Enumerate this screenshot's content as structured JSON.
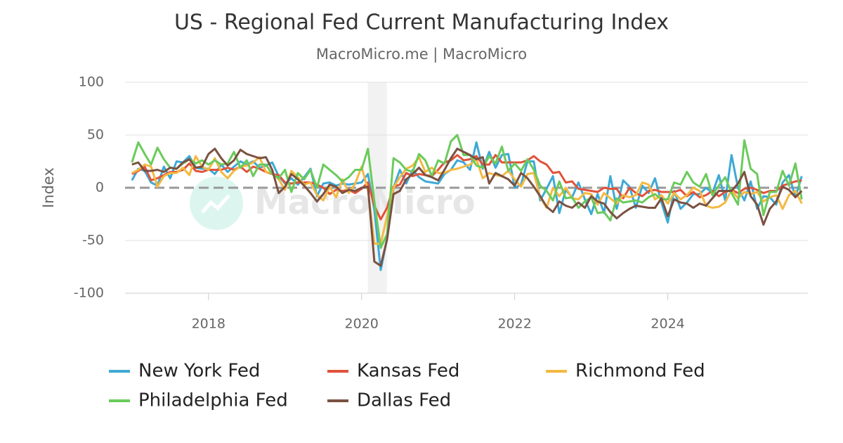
{
  "chart_data": {
    "type": "line",
    "title": "US - Regional Fed Current Manufacturing Index",
    "subtitle": "MacroMicro.me | MacroMicro",
    "y_label": "Index",
    "watermark": "MacroMicro",
    "x": [
      2017,
      2017.083,
      2017.167,
      2017.25,
      2017.333,
      2017.417,
      2017.5,
      2017.583,
      2017.667,
      2017.75,
      2017.833,
      2017.917,
      2018,
      2018.083,
      2018.167,
      2018.25,
      2018.333,
      2018.417,
      2018.5,
      2018.583,
      2018.667,
      2018.75,
      2018.833,
      2018.917,
      2019,
      2019.083,
      2019.167,
      2019.25,
      2019.333,
      2019.417,
      2019.5,
      2019.583,
      2019.667,
      2019.75,
      2019.833,
      2019.917,
      2020,
      2020.083,
      2020.167,
      2020.25,
      2020.333,
      2020.417,
      2020.5,
      2020.583,
      2020.667,
      2020.75,
      2020.833,
      2020.917,
      2021,
      2021.083,
      2021.167,
      2021.25,
      2021.333,
      2021.417,
      2021.5,
      2021.583,
      2021.667,
      2021.75,
      2021.833,
      2021.917,
      2022,
      2022.083,
      2022.167,
      2022.25,
      2022.333,
      2022.417,
      2022.5,
      2022.583,
      2022.667,
      2022.75,
      2022.833,
      2022.917,
      2023,
      2023.083,
      2023.167,
      2023.25,
      2023.333,
      2023.417,
      2023.5,
      2023.583,
      2023.667,
      2023.75,
      2023.833,
      2023.917,
      2024,
      2024.083,
      2024.167,
      2024.25,
      2024.333,
      2024.417,
      2024.5,
      2024.583,
      2024.667,
      2024.75,
      2024.833,
      2024.917,
      2025,
      2025.083,
      2025.167,
      2025.25,
      2025.333,
      2025.417,
      2025.5,
      2025.583,
      2025.667,
      2025.75
    ],
    "series": [
      {
        "name": "New York Fed",
        "color": "#3ea9d6",
        "values": [
          7,
          18,
          16,
          5,
          2,
          20,
          9,
          25,
          24,
          30,
          19,
          18,
          18,
          13,
          22,
          15,
          20,
          25,
          22,
          25,
          19,
          21,
          24,
          11,
          4,
          9,
          3,
          10,
          18,
          -8,
          4,
          5,
          2,
          4,
          3,
          4,
          5,
          13,
          -21,
          -78,
          -48,
          0,
          17,
          4,
          17,
          10,
          6,
          5,
          4,
          13,
          17,
          26,
          24,
          17,
          43,
          18,
          34,
          19,
          31,
          32,
          0,
          3,
          25,
          25,
          -12,
          -1,
          11,
          -24,
          -2,
          -9,
          5,
          -11,
          -25,
          -6,
          -24,
          11,
          -20,
          7,
          1,
          -19,
          2,
          -5,
          9,
          -14,
          -33,
          -3,
          -20,
          -14,
          -6,
          -6,
          0,
          -5,
          12,
          -12,
          31,
          0,
          -12,
          6,
          -20,
          -8,
          -9,
          -16,
          5,
          12,
          -9,
          11
        ]
      },
      {
        "name": "Kansas Fed",
        "color": "#e0533b",
        "values": [
          13,
          16,
          20,
          7,
          9,
          12,
          15,
          15,
          17,
          23,
          16,
          15,
          17,
          17,
          17,
          19,
          17,
          20,
          15,
          20,
          18,
          15,
          13,
          12,
          5,
          4,
          5,
          5,
          5,
          3,
          0,
          -6,
          -2,
          -3,
          -2,
          -5,
          -1,
          5,
          -17,
          -30,
          -19,
          1,
          3,
          14,
          11,
          13,
          12,
          11,
          17,
          24,
          26,
          31,
          26,
          27,
          30,
          22,
          22,
          31,
          24,
          24,
          24,
          24,
          26,
          30,
          25,
          22,
          14,
          15,
          5,
          6,
          -1,
          -2,
          -3,
          -4,
          0,
          -1,
          -1,
          -10,
          0,
          -5,
          -8,
          -3,
          -2,
          -4,
          -4,
          -4,
          -2,
          -8,
          -4,
          -9,
          -7,
          -3,
          -8,
          -4,
          -2,
          -5,
          -1,
          0,
          -2,
          -5,
          -3,
          -3,
          2,
          4,
          6,
          7
        ]
      },
      {
        "name": "Richmond Fed",
        "color": "#f4b942",
        "values": [
          14,
          17,
          22,
          20,
          1,
          11,
          14,
          14,
          19,
          12,
          30,
          20,
          17,
          28,
          15,
          9,
          16,
          20,
          21,
          24,
          29,
          15,
          14,
          8,
          -2,
          16,
          10,
          3,
          5,
          -7,
          -12,
          1,
          -9,
          8,
          -5,
          4,
          20,
          -2,
          -53,
          -53,
          -27,
          0,
          10,
          18,
          21,
          29,
          15,
          19,
          14,
          14,
          17,
          18,
          20,
          22,
          27,
          9,
          14,
          12,
          11,
          16,
          8,
          1,
          13,
          14,
          -9,
          -19,
          0,
          -8,
          0,
          -10,
          -11,
          -5,
          -6,
          -16,
          -5,
          -10,
          -15,
          -7,
          -9,
          -7,
          5,
          3,
          -11,
          -7,
          -15,
          -5,
          -11,
          -7,
          0,
          -3,
          -17,
          -19,
          -18,
          -14,
          -2,
          -10,
          -4,
          -6,
          -4,
          -13,
          -9,
          -7,
          -20,
          -7,
          -3,
          -15
        ]
      },
      {
        "name": "Philadelphia Fed",
        "color": "#6acb5b",
        "values": [
          24,
          43,
          32,
          22,
          38,
          27,
          19,
          18,
          23,
          27,
          23,
          26,
          22,
          26,
          22,
          23,
          34,
          19,
          26,
          11,
          22,
          22,
          13,
          9,
          17,
          -4,
          14,
          8,
          17,
          0,
          22,
          17,
          12,
          6,
          10,
          17,
          17,
          37,
          -13,
          -57,
          -44,
          28,
          24,
          17,
          15,
          32,
          26,
          11,
          26,
          23,
          44,
          50,
          31,
          31,
          21,
          19,
          30,
          23,
          39,
          16,
          23,
          16,
          27,
          17,
          2,
          -3,
          -12,
          6,
          -10,
          -9,
          -19,
          -13,
          -9,
          -24,
          -23,
          -31,
          -10,
          -14,
          -13,
          -12,
          -14,
          -9,
          -6,
          -11,
          -11,
          5,
          3,
          15,
          5,
          1,
          13,
          -7,
          2,
          10,
          -5,
          -16,
          45,
          18,
          13,
          -26,
          -4,
          -4,
          16,
          2,
          23,
          -11
        ]
      },
      {
        "name": "Dallas Fed",
        "color": "#7b5141",
        "values": [
          22,
          24,
          16,
          16,
          17,
          15,
          19,
          18,
          24,
          27,
          19,
          20,
          32,
          37,
          28,
          21,
          26,
          36,
          32,
          30,
          28,
          29,
          17,
          -5,
          1,
          13,
          8,
          2,
          -5,
          -13,
          -6,
          3,
          1,
          -5,
          -2,
          -3,
          0,
          1,
          -70,
          -74,
          -49,
          -6,
          -3,
          8,
          13,
          19,
          12,
          10,
          7,
          17,
          28,
          37,
          34,
          31,
          27,
          29,
          4,
          14,
          11,
          8,
          2,
          14,
          9,
          1,
          -8,
          -18,
          -23,
          -13,
          -17,
          -19,
          -14,
          -19,
          -8,
          -13,
          -15,
          -23,
          -29,
          -24,
          -20,
          -17,
          -18,
          -19,
          -19,
          -10,
          -27,
          -11,
          -14,
          -15,
          -19,
          -15,
          -17,
          -10,
          -3,
          -3,
          -3,
          4,
          15,
          -8,
          -16,
          -35,
          -20,
          -13,
          1,
          -2,
          -9,
          -3
        ]
      }
    ],
    "shaded_ranges": [
      [
        2020.08,
        2020.33
      ]
    ],
    "shade_color": "#f2f2f2",
    "xlim": [
      2016.91,
      2025.83
    ],
    "xticks": [
      2018,
      2020,
      2022,
      2024
    ],
    "ylim": [
      -100,
      100
    ],
    "yticks": [
      -100,
      -50,
      0,
      50,
      100
    ],
    "grid": true,
    "zero_line": true,
    "legend": "bottom"
  }
}
